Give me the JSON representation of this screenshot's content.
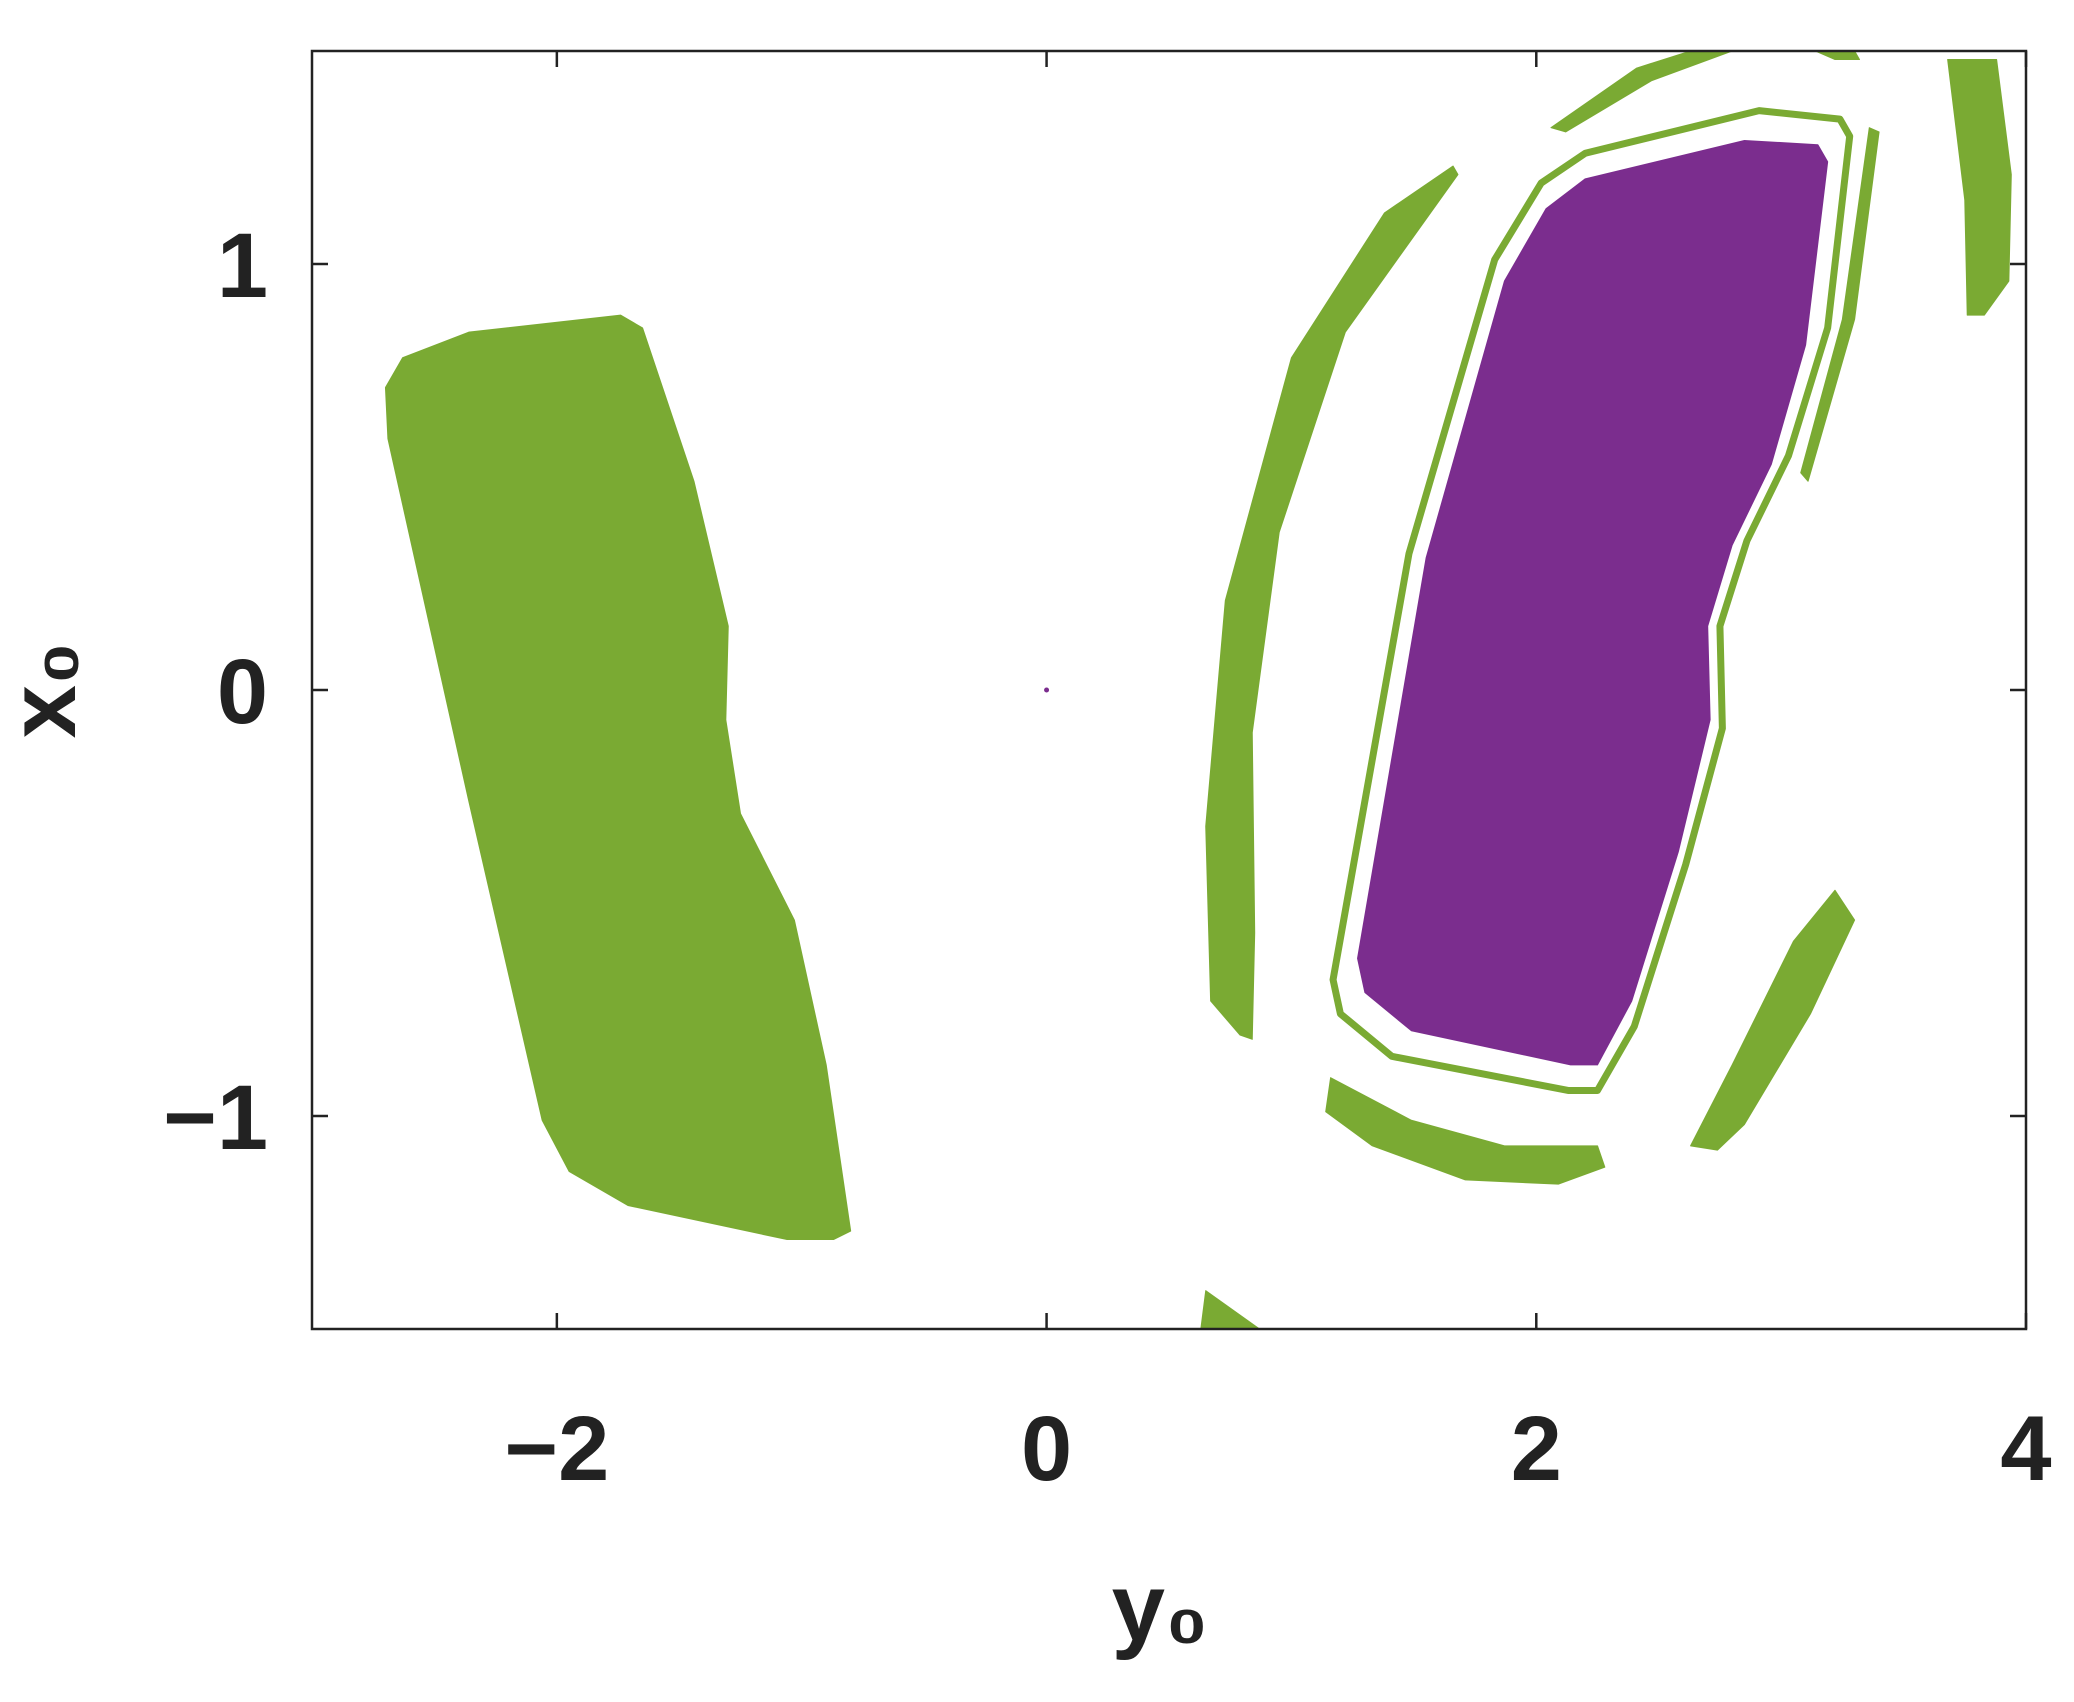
{
  "chart_data": {
    "type": "region",
    "xlabel": "y₀",
    "ylabel": "x₀",
    "xlim": [
      -3,
      4
    ],
    "ylim": [
      -1.5,
      1.5
    ],
    "xticks": [
      {
        "value": -2,
        "label": "−2"
      },
      0,
      2,
      4
    ],
    "yticks": [
      {
        "value": -1,
        "label": "−1"
      },
      0,
      1
    ],
    "regions": [
      {
        "color": "#7aaa33",
        "x": [
          -2.7,
          -2.63,
          -2.36,
          -1.74,
          -1.65,
          -1.44,
          -1.3,
          -1.31,
          -1.25,
          -1.03,
          -0.9,
          -0.8,
          -0.87,
          -1.06,
          -1.71,
          -1.95,
          -2.06,
          -2.36,
          -2.69
        ],
        "y": [
          0.71,
          0.78,
          0.84,
          0.88,
          0.85,
          0.49,
          0.15,
          -0.07,
          -0.29,
          -0.54,
          -0.88,
          -1.27,
          -1.29,
          -1.29,
          -1.21,
          -1.13,
          -1.01,
          -0.26,
          0.59
        ]
      },
      {
        "color": "#7aaa33",
        "x": [
          1.66,
          1.68,
          1.22,
          0.95,
          0.84,
          0.85,
          0.84,
          0.79,
          0.67,
          0.65,
          0.73,
          1.0,
          1.38
        ],
        "y": [
          1.23,
          1.21,
          0.84,
          0.37,
          -0.1,
          -0.57,
          -0.82,
          -0.81,
          -0.73,
          -0.32,
          0.21,
          0.78,
          1.12
        ]
      },
      {
        "color": "#7aaa33",
        "x": [
          1.16,
          1.49,
          1.87,
          2.25,
          2.28,
          2.09,
          1.71,
          1.33,
          1.14
        ],
        "y": [
          -0.91,
          -1.01,
          -1.07,
          -1.07,
          -1.12,
          -1.16,
          -1.15,
          -1.07,
          -0.99
        ]
      },
      {
        "color": "#7aaa33",
        "x": [
          3.22,
          3.3,
          3.12,
          2.85,
          2.74,
          2.63,
          2.8,
          3.05
        ],
        "y": [
          -0.47,
          -0.54,
          -0.76,
          -1.02,
          -1.08,
          -1.07,
          -0.88,
          -0.59
        ]
      },
      {
        "color": "#7aaa33",
        "x": [
          2.06,
          2.41,
          2.63,
          2.8,
          2.47,
          2.12
        ],
        "y": [
          1.32,
          1.46,
          1.5,
          1.5,
          1.43,
          1.31
        ]
      },
      {
        "color": "#7aaa33",
        "x": [
          3.14,
          3.3,
          3.32,
          3.22
        ],
        "y": [
          1.5,
          1.5,
          1.48,
          1.48
        ]
      },
      {
        "color": "#7aaa33",
        "x": [
          3.68,
          3.88,
          3.94,
          3.93,
          3.83,
          3.76,
          3.75
        ],
        "y": [
          1.48,
          1.48,
          1.21,
          0.96,
          0.88,
          0.88,
          1.15
        ]
      },
      {
        "color": "#7aaa33",
        "x": [
          0.65,
          0.87,
          0.63
        ],
        "y": [
          -1.41,
          -1.5,
          -1.5
        ]
      },
      {
        "color": "#7aaa33",
        "x": [
          3.36,
          3.4,
          3.3,
          3.11,
          3.08,
          3.25
        ],
        "y": [
          1.32,
          1.31,
          0.87,
          0.49,
          0.51,
          0.87
        ]
      },
      {
        "color": "#7aaa33",
        "outline": true,
        "x": [
          2.02,
          2.2,
          2.91,
          3.24,
          3.28,
          3.19,
          3.03,
          2.86,
          2.75,
          2.76,
          2.61,
          2.4,
          2.25,
          2.13,
          1.41,
          1.2,
          1.17,
          1.48,
          1.83
        ],
        "y": [
          1.19,
          1.26,
          1.36,
          1.34,
          1.3,
          0.85,
          0.55,
          0.35,
          0.15,
          -0.09,
          -0.41,
          -0.79,
          -0.94,
          -0.94,
          -0.86,
          -0.76,
          -0.68,
          0.32,
          1.01
        ]
      },
      {
        "color": "#7b2d8e",
        "x": [
          2.04,
          2.2,
          2.85,
          3.15,
          3.19,
          3.1,
          2.96,
          2.8,
          2.7,
          2.71,
          2.58,
          2.39,
          2.25,
          2.14,
          1.49,
          1.3,
          1.27,
          1.55,
          1.87
        ],
        "y": [
          1.13,
          1.2,
          1.29,
          1.28,
          1.24,
          0.81,
          0.53,
          0.34,
          0.15,
          -0.07,
          -0.38,
          -0.73,
          -0.88,
          -0.88,
          -0.8,
          -0.71,
          -0.63,
          0.31,
          0.96
        ]
      }
    ],
    "point": {
      "x": 0,
      "y": 0,
      "color": "#7b2d8e"
    }
  }
}
